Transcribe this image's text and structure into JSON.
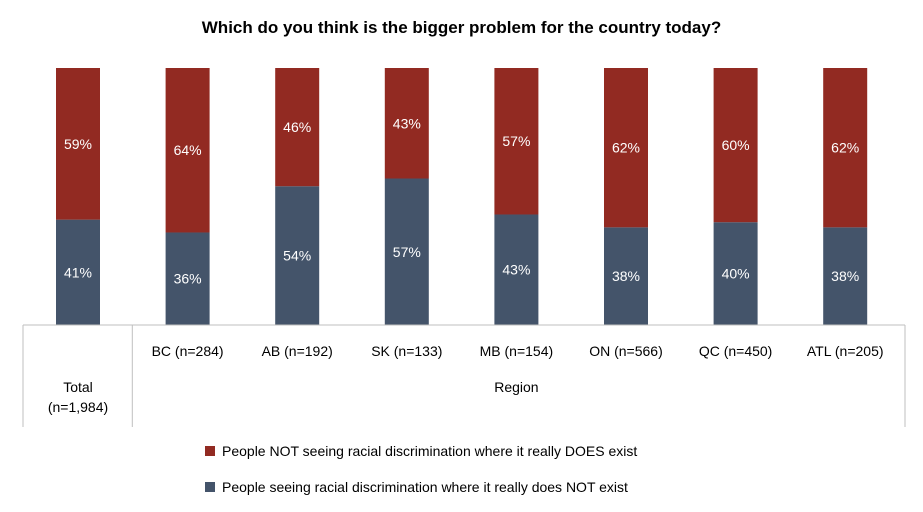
{
  "chart_data": {
    "type": "bar",
    "stacked": true,
    "title": "Which do you think is the bigger problem for the country today?",
    "categories": [
      "Total\n(n=1,984)",
      "BC (n=284)",
      "AB (n=192)",
      "SK (n=133)",
      "MB (n=154)",
      "ON (n=566)",
      "QC (n=450)",
      "ATL (n=205)"
    ],
    "total_label_lines": [
      "Total",
      "(n=1,984)"
    ],
    "group_label": "Region",
    "series": [
      {
        "name": "People seeing racial discrimination where it really does NOT exist",
        "color": "#44546a",
        "values": [
          41,
          36,
          54,
          57,
          43,
          38,
          40,
          38
        ],
        "labels": [
          "41%",
          "36%",
          "54%",
          "57%",
          "43%",
          "38%",
          "40%",
          "38%"
        ]
      },
      {
        "name": "People NOT seeing racial discrimination where it really DOES exist",
        "color": "#922a22",
        "values": [
          59,
          64,
          46,
          43,
          57,
          62,
          60,
          62
        ],
        "labels": [
          "59%",
          "64%",
          "46%",
          "43%",
          "57%",
          "62%",
          "60%",
          "62%"
        ]
      }
    ],
    "ylim": [
      0,
      100
    ],
    "grid": false,
    "legend_position": "bottom",
    "legend_order": [
      1,
      0
    ]
  }
}
